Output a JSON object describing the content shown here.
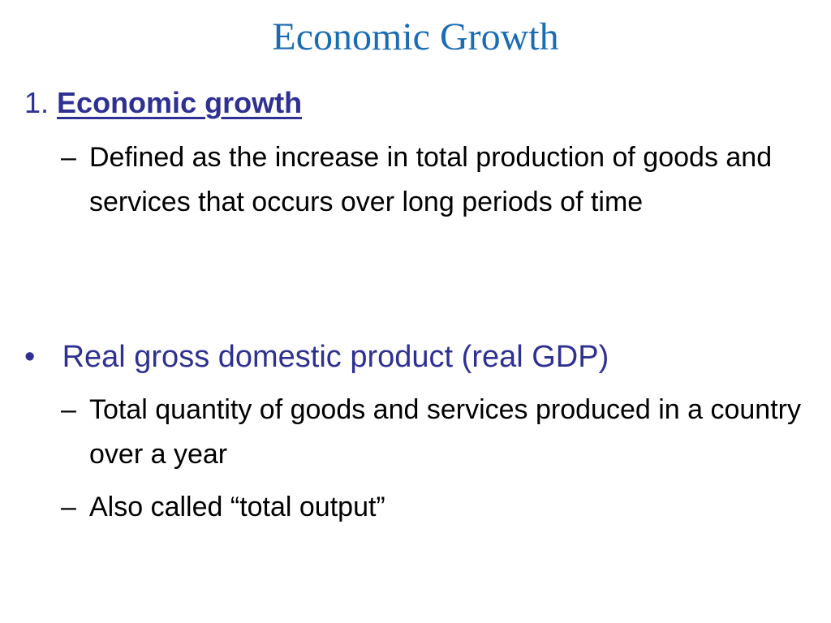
{
  "slide": {
    "title": "Economic Growth",
    "section_number": "1.",
    "section_heading": "Economic growth",
    "section_items": [
      {
        "marker": "–",
        "text": " Defined as the increase in total production of goods and services that occurs over long periods of time"
      }
    ],
    "bullet": {
      "marker": "•",
      "text": "Real gross domestic product (real GDP)"
    },
    "bullet_items": [
      {
        "marker": "–",
        "text": "Total quantity of goods and services produced in a country over a year"
      },
      {
        "marker": "–",
        "text": " Also called “total output”"
      }
    ],
    "colors": {
      "title": "#1a6cb5",
      "heading": "#2e3192",
      "body": "#000000"
    }
  }
}
